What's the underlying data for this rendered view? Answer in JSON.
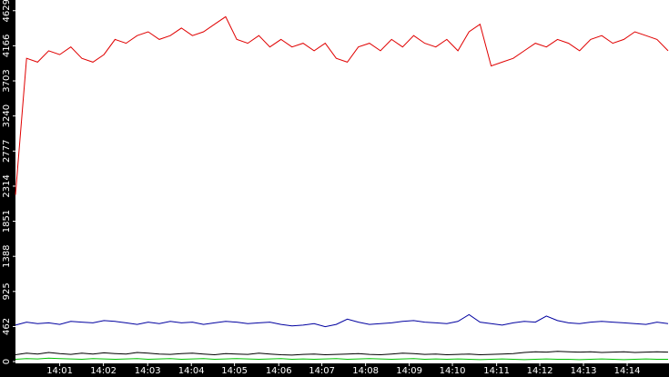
{
  "chart_data": {
    "type": "line",
    "xlim": [
      0,
      59
    ],
    "xticks": [
      {
        "value": 4.0,
        "label": "14:01"
      },
      {
        "value": 7.95,
        "label": "14:02"
      },
      {
        "value": 11.95,
        "label": "14:03"
      },
      {
        "value": 15.9,
        "label": "14:04"
      },
      {
        "value": 19.8,
        "label": "14:05"
      },
      {
        "value": 23.8,
        "label": "14:06"
      },
      {
        "value": 27.7,
        "label": "14:07"
      },
      {
        "value": 31.65,
        "label": "14:08"
      },
      {
        "value": 35.6,
        "label": "14:09"
      },
      {
        "value": 39.5,
        "label": "14:10"
      },
      {
        "value": 43.5,
        "label": "14:11"
      },
      {
        "value": 47.4,
        "label": "14:12"
      },
      {
        "value": 51.35,
        "label": "14:13"
      },
      {
        "value": 55.3,
        "label": "14:14"
      }
    ],
    "ylim": [
      0,
      4770
    ],
    "yticks": [
      0,
      462,
      925,
      1388,
      1851,
      2314,
      2777,
      3240,
      3703,
      4166,
      4629
    ],
    "series": [
      {
        "color": "#e00000",
        "values": [
          2200,
          4000,
          3950,
          4100,
          4050,
          4150,
          4000,
          3950,
          4050,
          4250,
          4200,
          4300,
          4350,
          4250,
          4300,
          4400,
          4300,
          4350,
          4450,
          4550,
          4250,
          4200,
          4300,
          4150,
          4250,
          4150,
          4200,
          4100,
          4200,
          4000,
          3950,
          4150,
          4200,
          4100,
          4250,
          4150,
          4300,
          4200,
          4150,
          4250,
          4100,
          4350,
          4450,
          3900,
          3950,
          4000,
          4100,
          4200,
          4150,
          4250,
          4200,
          4100,
          4250,
          4300,
          4200,
          4250,
          4350,
          4300,
          4250,
          4100
        ]
      },
      {
        "color": "#0000a0",
        "values": [
          480,
          520,
          500,
          510,
          490,
          530,
          520,
          510,
          540,
          530,
          510,
          490,
          520,
          500,
          530,
          510,
          520,
          490,
          510,
          530,
          520,
          500,
          510,
          520,
          490,
          470,
          480,
          500,
          460,
          490,
          560,
          520,
          490,
          500,
          510,
          530,
          540,
          520,
          510,
          500,
          530,
          620,
          520,
          500,
          480,
          510,
          530,
          520,
          600,
          540,
          510,
          500,
          520,
          530,
          520,
          510,
          500,
          490,
          520,
          500
        ]
      },
      {
        "color": "#000000",
        "values": [
          90,
          110,
          100,
          120,
          105,
          95,
          110,
          100,
          115,
          105,
          100,
          120,
          110,
          100,
          95,
          105,
          110,
          100,
          90,
          105,
          100,
          95,
          110,
          100,
          90,
          85,
          95,
          100,
          90,
          95,
          100,
          105,
          95,
          90,
          100,
          110,
          105,
          95,
          100,
          90,
          95,
          100,
          90,
          95,
          100,
          105,
          120,
          130,
          125,
          135,
          130,
          125,
          130,
          120,
          125,
          130,
          120,
          125,
          130,
          125
        ]
      },
      {
        "color": "#00c000",
        "values": [
          30,
          40,
          35,
          45,
          40,
          35,
          30,
          40,
          35,
          30,
          35,
          40,
          30,
          35,
          40,
          30,
          35,
          40,
          30,
          35,
          40,
          35,
          30,
          35,
          40,
          30,
          35,
          30,
          35,
          40,
          30,
          35,
          40,
          35,
          30,
          35,
          40,
          30,
          35,
          30,
          35,
          30,
          25,
          30,
          35,
          30,
          25,
          30,
          35,
          30,
          30,
          25,
          30,
          35,
          30,
          25,
          30,
          35,
          30,
          30
        ]
      }
    ]
  }
}
